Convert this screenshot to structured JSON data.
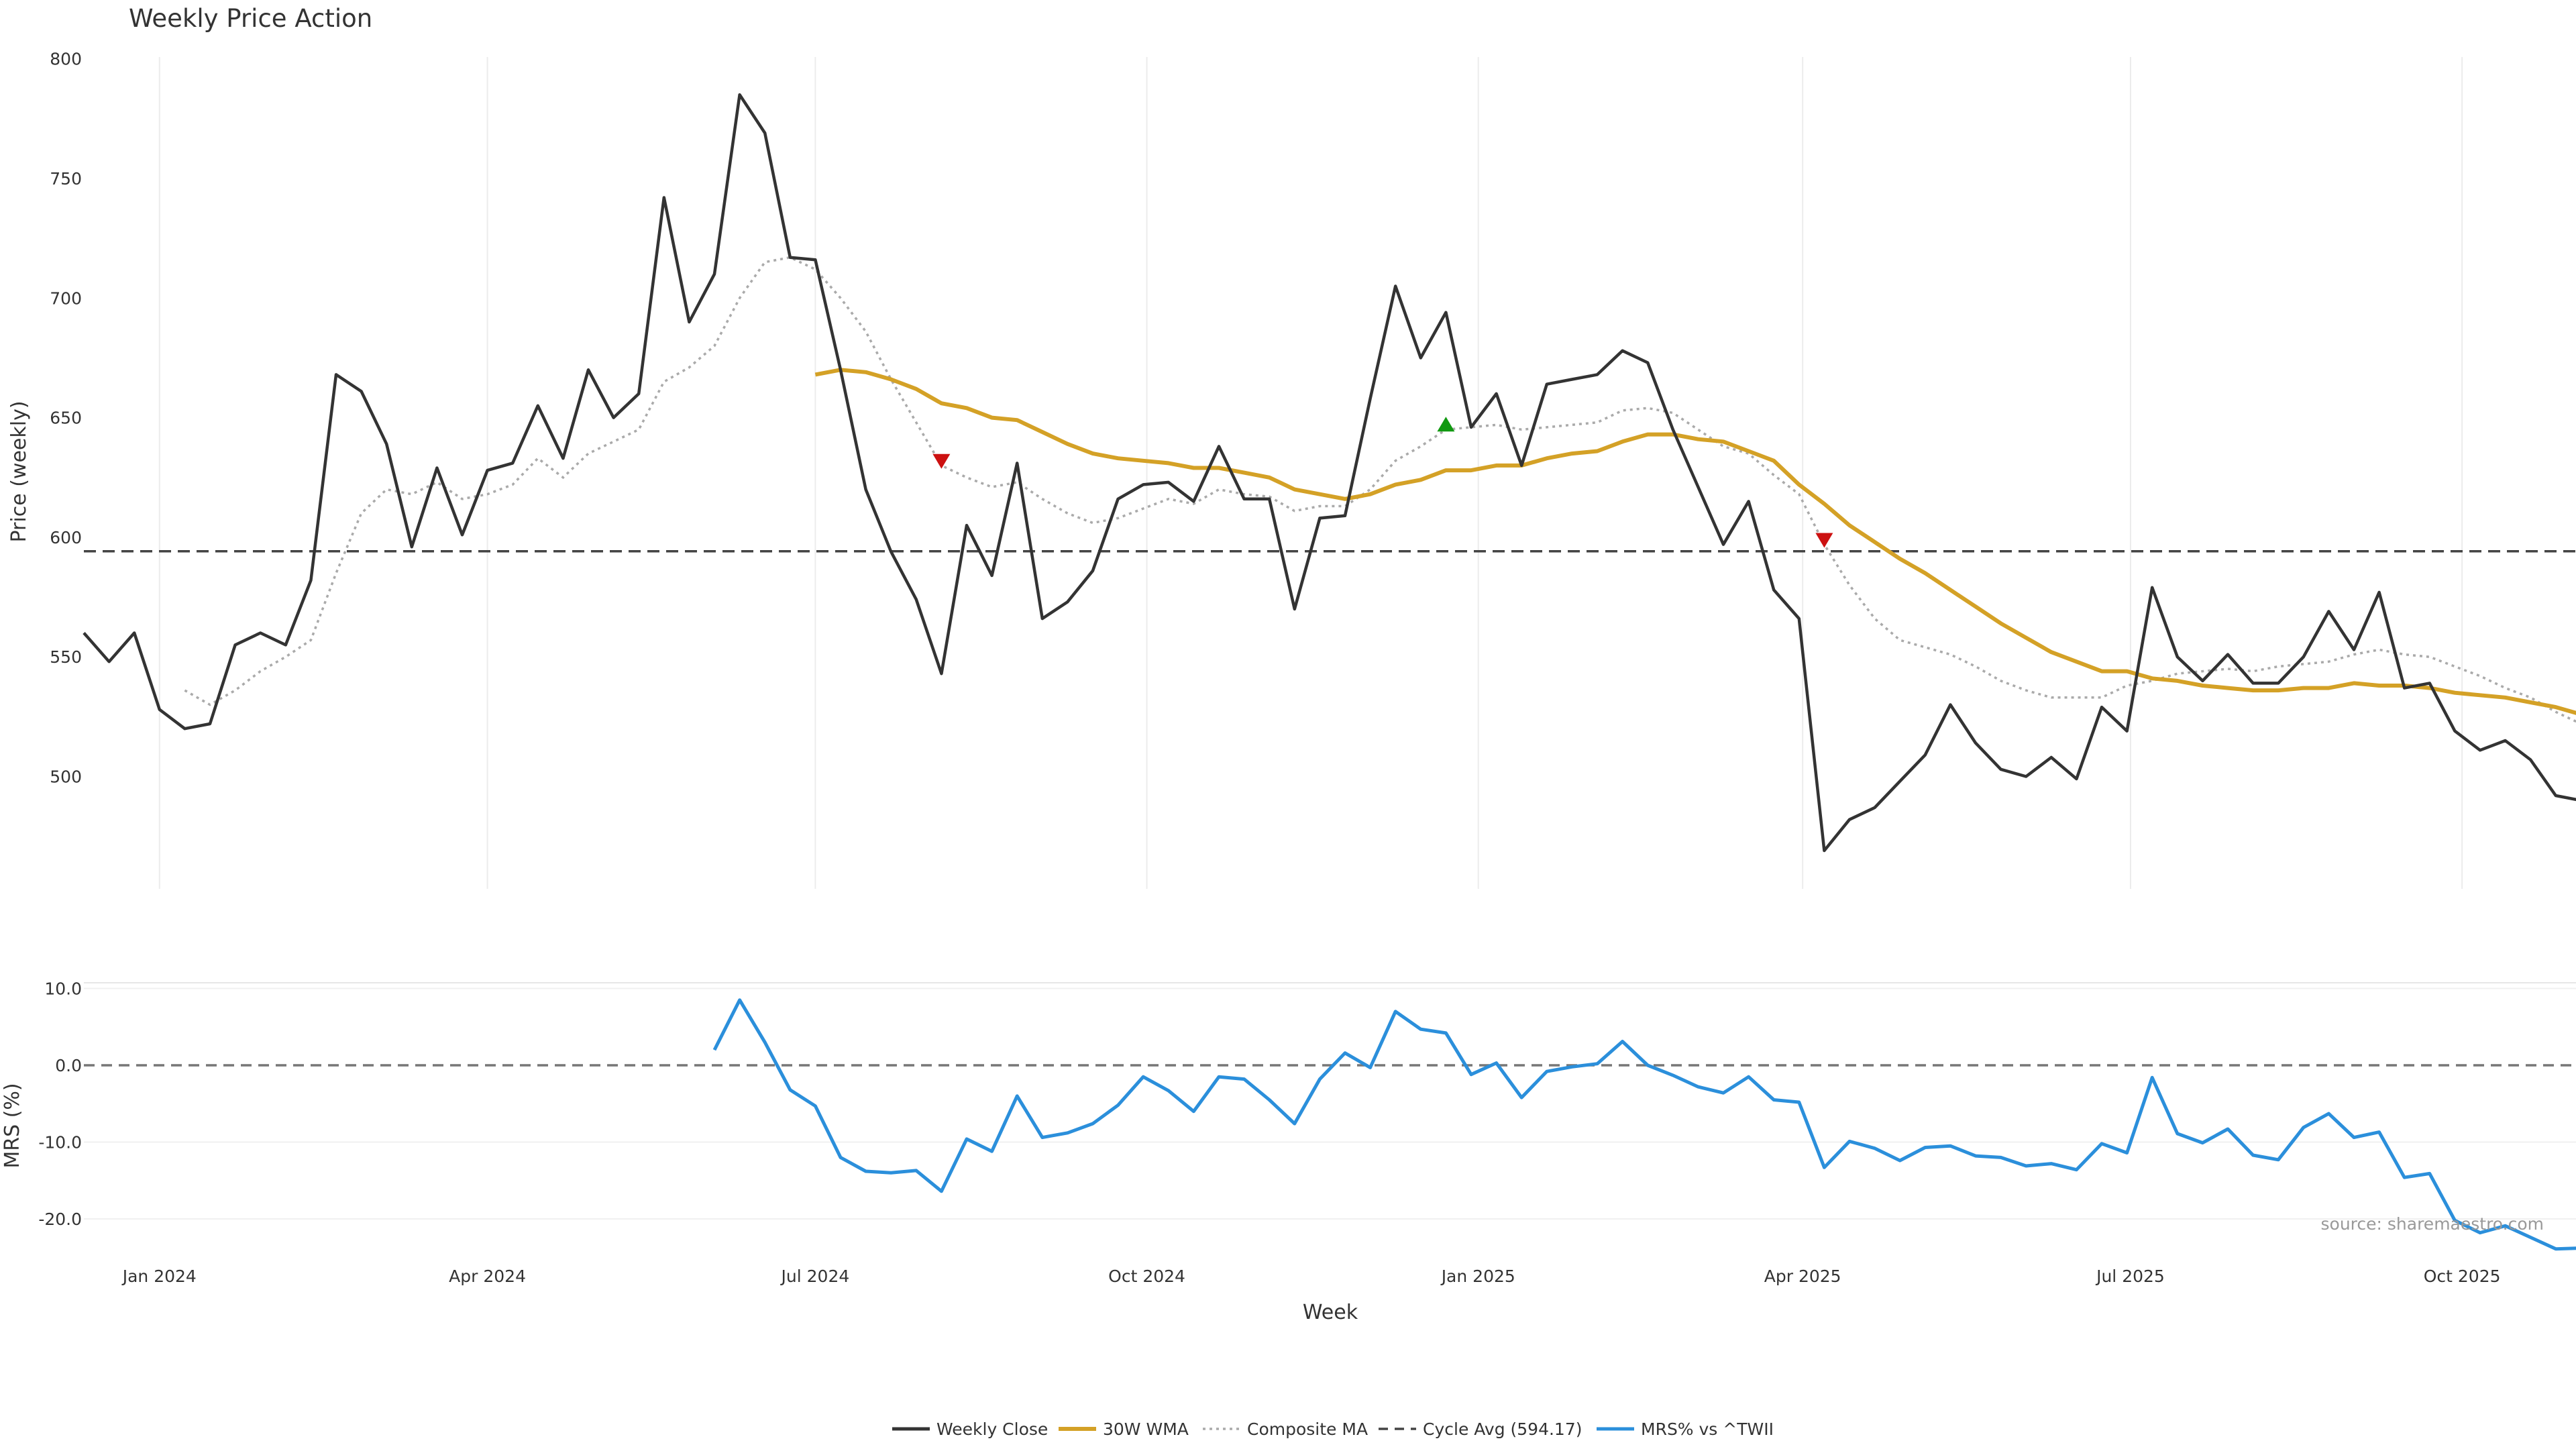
{
  "chart_data": [
    {
      "type": "line",
      "title": "Weekly Price Action",
      "xlabel": "",
      "ylabel": "Price (weekly)",
      "ylim": [
        450,
        800
      ],
      "yticks": [
        500,
        550,
        600,
        650,
        700,
        750,
        800
      ],
      "grid": true,
      "x_start": "2023-12-11",
      "x_step_days": 7,
      "series": [
        {
          "name": "Weekly Close",
          "color": "#333333",
          "values": [
            560,
            548,
            560,
            528,
            520,
            522,
            555,
            560,
            555,
            582,
            668,
            661,
            639,
            596,
            629,
            601,
            628,
            631,
            655,
            633,
            670,
            650,
            660,
            742,
            690,
            710,
            785,
            769,
            717,
            716,
            670,
            620,
            594,
            574,
            543,
            605,
            584,
            631,
            566,
            573,
            586,
            616,
            622,
            623,
            615,
            638,
            616,
            616,
            570,
            608,
            609,
            658,
            705,
            675,
            694,
            646,
            660,
            630,
            664,
            666,
            668,
            678,
            673,
            645,
            621,
            597,
            615,
            578,
            566,
            469,
            482,
            487,
            498,
            509,
            530,
            514,
            503,
            500,
            508,
            499,
            529,
            519,
            579,
            550,
            540,
            551,
            539,
            539,
            550,
            569,
            553,
            577,
            537,
            539,
            519,
            511,
            515,
            507,
            492,
            490
          ]
        },
        {
          "name": "30W WMA",
          "color": "#D4A126",
          "values": [
            null,
            null,
            null,
            null,
            null,
            null,
            null,
            null,
            null,
            null,
            null,
            null,
            null,
            null,
            null,
            null,
            null,
            null,
            null,
            null,
            null,
            null,
            null,
            null,
            null,
            null,
            null,
            null,
            null,
            668,
            670,
            669,
            666,
            662,
            656,
            654,
            650,
            649,
            644,
            639,
            635,
            633,
            632,
            631,
            629,
            629,
            627,
            625,
            620,
            618,
            616,
            618,
            622,
            624,
            628,
            628,
            630,
            630,
            633,
            635,
            636,
            640,
            643,
            643,
            641,
            640,
            636,
            632,
            622,
            614,
            605,
            598,
            591,
            585,
            578,
            571,
            564,
            558,
            552,
            548,
            544,
            544,
            541,
            540,
            538,
            537,
            536,
            536,
            537,
            537,
            539,
            538,
            538,
            537,
            535,
            534,
            533,
            531,
            529,
            526
          ]
        },
        {
          "name": "Composite MA",
          "color": "#AAAAAA",
          "values": [
            null,
            null,
            null,
            null,
            536,
            530,
            536,
            544,
            550,
            557,
            585,
            610,
            620,
            618,
            623,
            616,
            618,
            622,
            633,
            625,
            635,
            640,
            645,
            665,
            671,
            680,
            700,
            715,
            717,
            712,
            700,
            686,
            666,
            648,
            630,
            625,
            621,
            623,
            616,
            610,
            606,
            608,
            612,
            616,
            614,
            620,
            618,
            617,
            611,
            613,
            613,
            620,
            632,
            638,
            645,
            646,
            647,
            645,
            646,
            647,
            648,
            653,
            654,
            652,
            645,
            638,
            635,
            626,
            618,
            597,
            580,
            566,
            557,
            554,
            551,
            546,
            540,
            536,
            533,
            533,
            533,
            538,
            540,
            543,
            544,
            545,
            544,
            546,
            547,
            548,
            551,
            553,
            551,
            550,
            546,
            542,
            537,
            533,
            527,
            522
          ]
        },
        {
          "name": "Cycle Avg (594.17)",
          "color": "#444444",
          "constant": 594.17
        }
      ],
      "markers": [
        {
          "type": "sell",
          "color": "#CC1111",
          "x_index": 34,
          "y": 632
        },
        {
          "type": "buy",
          "color": "#119911",
          "x_index": 54,
          "y": 647
        },
        {
          "type": "sell",
          "color": "#CC1111",
          "x_index": 69,
          "y": 599
        }
      ]
    },
    {
      "type": "line",
      "title": "",
      "xlabel": "Week",
      "ylabel": "MRS (%)",
      "ylim": [
        -24,
        12
      ],
      "yticks": [
        "-20.0",
        "-10.0",
        "0.0",
        "10.0"
      ],
      "zero_line": true,
      "x_tick_labels": [
        "Jan 2024",
        "Apr 2024",
        "Jul 2024",
        "Oct 2024",
        "Jan 2025",
        "Apr 2025",
        "Jul 2025",
        "Oct 2025"
      ],
      "series": [
        {
          "name": "MRS% vs ^TWII",
          "color": "#2B8FDB",
          "values": [
            null,
            null,
            null,
            null,
            null,
            null,
            null,
            null,
            null,
            null,
            null,
            null,
            null,
            null,
            null,
            null,
            null,
            null,
            null,
            null,
            null,
            null,
            null,
            null,
            null,
            2,
            8.5,
            3,
            -3.2,
            -5.3,
            -12,
            -13.8,
            -14,
            -13.7,
            -16.4,
            -9.6,
            -11.2,
            -4,
            -9.4,
            -8.8,
            -7.6,
            -5.2,
            -1.5,
            -3.3,
            -6,
            -1.5,
            -1.8,
            -4.5,
            -7.6,
            -1.8,
            1.6,
            -0.3,
            7,
            4.7,
            4.2,
            -1.2,
            0.3,
            -4.2,
            -0.8,
            -0.2,
            0.2,
            3.1,
            0,
            -1.3,
            -2.8,
            -3.6,
            -1.5,
            -4.5,
            -4.8,
            -13.3,
            -9.9,
            -10.8,
            -12.4,
            -10.7,
            -10.5,
            -11.8,
            -12,
            -13.1,
            -12.8,
            -13.6,
            -10.2,
            -11.4,
            -1.6,
            -8.9,
            -10.1,
            -8.3,
            -11.7,
            -12.3,
            -8.1,
            -6.3,
            -9.4,
            -8.7,
            -14.6,
            -14.1,
            -20.2,
            -21.8,
            -20.9,
            -22.4,
            -23.9,
            -23.8
          ]
        }
      ]
    }
  ],
  "source_text": "source: sharemaestro.com"
}
